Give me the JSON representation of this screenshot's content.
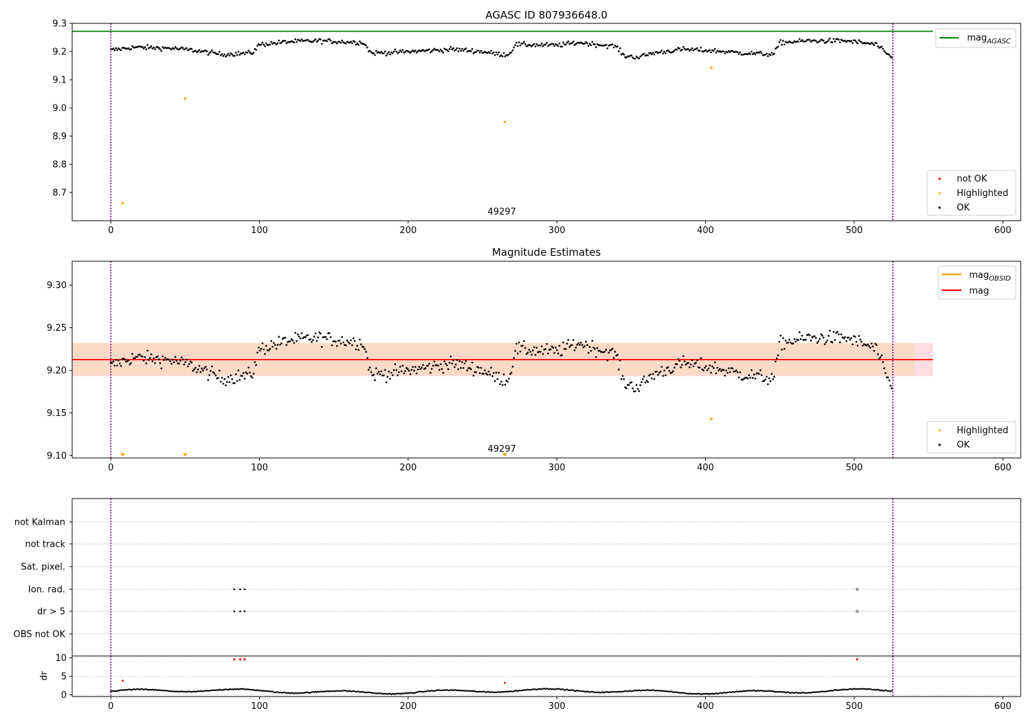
{
  "chart_data": [
    {
      "type": "scatter",
      "title": "AGASC ID 807936648.0",
      "xlim": [
        -26,
        612
      ],
      "ylim": [
        8.6,
        9.3
      ],
      "xticks": [
        0,
        100,
        200,
        300,
        400,
        500,
        600
      ],
      "yticks": [
        8.7,
        8.8,
        8.9,
        9.0,
        9.1,
        9.2,
        9.3
      ],
      "vlines": [
        0,
        526
      ],
      "annotation": {
        "text": "49297",
        "x": 263
      },
      "hline": {
        "label": "magAGASC",
        "y": 9.272,
        "x_end": 553,
        "color": "#008000"
      },
      "legend_top": [
        {
          "label": "mag",
          "sub": "AGASC",
          "color": "#008000",
          "kind": "line"
        }
      ],
      "legend_bottom": [
        {
          "label": "not OK",
          "color": "#ff0000",
          "kind": "dot"
        },
        {
          "label": "Highlighted",
          "color": "#ffa500",
          "kind": "dot"
        },
        {
          "label": "OK",
          "color": "#000000",
          "kind": "dot"
        }
      ],
      "highlighted": {
        "x": [
          8,
          50,
          265,
          404
        ],
        "y": [
          8.662,
          9.033,
          8.95,
          9.143
        ]
      }
    },
    {
      "type": "scatter",
      "title": "Magnitude Estimates",
      "xlim": [
        -26,
        612
      ],
      "ylim": [
        9.097,
        9.328
      ],
      "xticks": [
        0,
        100,
        200,
        300,
        400,
        500,
        600
      ],
      "yticks": [
        9.1,
        9.15,
        9.2,
        9.25,
        9.3
      ],
      "vlines": [
        0,
        526
      ],
      "annotation": {
        "text": "49297",
        "x": 263
      },
      "mag_line": {
        "y": 9.2125,
        "x_end": 553,
        "color": "#ff0000"
      },
      "band_outer": {
        "y0": 9.193,
        "y1": 9.232,
        "x_end": 553,
        "color": "#ffdde3"
      },
      "band_inner": {
        "y0": 9.194,
        "y1": 9.232,
        "x_end": 541,
        "color": "#fdd9c8"
      },
      "legend_top": [
        {
          "label": "mag",
          "sub": "OBSID",
          "color": "#ffa500",
          "kind": "line"
        },
        {
          "label": "mag",
          "sub": "",
          "color": "#ff0000",
          "kind": "line"
        }
      ],
      "legend_bottom": [
        {
          "label": "Highlighted",
          "color": "#ffa500",
          "kind": "dot"
        },
        {
          "label": "OK",
          "color": "#000000",
          "kind": "dot"
        }
      ],
      "highlighted": {
        "x": [
          404
        ],
        "y": [
          9.143
        ]
      },
      "clipped_markers_x": [
        8,
        50,
        265
      ]
    },
    {
      "type": "scatter",
      "title": "",
      "xlim": [
        -26,
        612
      ],
      "vlines": [
        0,
        526
      ],
      "flag_categories": [
        "not Kalman",
        "not track",
        "Sat. pixel.",
        "Ion. rad.",
        "dr > 5",
        "OBS not OK"
      ],
      "flags": [
        {
          "category": "Ion. rad.",
          "x": [
            83,
            87,
            90,
            502
          ]
        },
        {
          "category": "dr > 5",
          "x": [
            83,
            87,
            90,
            502
          ]
        }
      ]
    },
    {
      "type": "scatter",
      "title": "",
      "ylabel": "dr",
      "xlim": [
        -26,
        612
      ],
      "ylim": [
        -0.5,
        10.5
      ],
      "xticks": [
        0,
        100,
        200,
        300,
        400,
        500,
        600
      ],
      "yticks": [
        0,
        5,
        10
      ],
      "vlines": [
        0,
        526
      ],
      "red_points": {
        "x": [
          8,
          83,
          87,
          90,
          265,
          502
        ],
        "y": [
          3.8,
          9.7,
          9.7,
          9.7,
          3.2,
          9.7
        ]
      }
    }
  ]
}
